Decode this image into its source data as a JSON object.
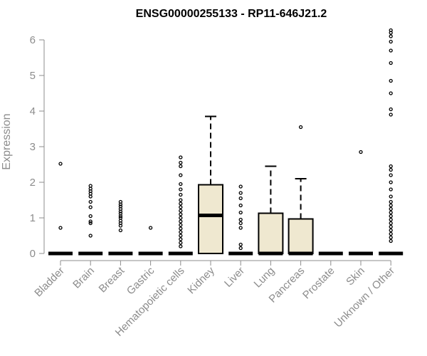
{
  "chart_data": {
    "type": "boxplot",
    "title": "ENSG00000255133 - RP11-646J21.2",
    "xlabel": "",
    "ylabel": "Expression",
    "ylim": [
      0,
      6.3
    ],
    "yticks": [
      0,
      1,
      2,
      3,
      4,
      5,
      6
    ],
    "grid": false,
    "box_fill": "#efe8d0",
    "categories": [
      "Bladder",
      "Brain",
      "Breast",
      "Gastric",
      "Hematopoietic cells",
      "Kidney",
      "Liver",
      "Lung",
      "Pancreas",
      "Prostate",
      "Skin",
      "Unknown / Other"
    ],
    "boxes": [
      {
        "q1": 0,
        "median": 0,
        "q3": 0,
        "whisker_low": 0,
        "whisker_high": 0,
        "outliers": [
          0.72,
          2.52
        ]
      },
      {
        "q1": 0,
        "median": 0,
        "q3": 0,
        "whisker_low": 0,
        "whisker_high": 0,
        "outliers": [
          0.5,
          0.85,
          0.9,
          1.05,
          1.3,
          1.45,
          1.6,
          1.68,
          1.75,
          1.82,
          1.9
        ]
      },
      {
        "q1": 0,
        "median": 0,
        "q3": 0,
        "whisker_low": 0,
        "whisker_high": 0,
        "outliers": [
          0.65,
          0.78,
          0.85,
          0.92,
          1.0,
          1.05,
          1.12,
          1.18,
          1.25,
          1.32,
          1.38,
          1.45
        ]
      },
      {
        "q1": 0,
        "median": 0,
        "q3": 0,
        "whisker_low": 0,
        "whisker_high": 0,
        "outliers": [
          0.72
        ]
      },
      {
        "q1": 0,
        "median": 0,
        "q3": 0,
        "whisker_low": 0,
        "whisker_high": 0,
        "outliers": [
          0.2,
          0.3,
          0.4,
          0.5,
          0.6,
          0.7,
          0.8,
          0.9,
          1.0,
          1.1,
          1.2,
          1.3,
          1.4,
          1.5,
          1.65,
          1.8,
          1.95,
          2.2,
          2.45,
          2.55,
          2.7
        ]
      },
      {
        "q1": 0,
        "median": 1.07,
        "q3": 1.93,
        "whisker_low": 0,
        "whisker_high": 3.85,
        "outliers": []
      },
      {
        "q1": 0,
        "median": 0,
        "q3": 0,
        "whisker_low": 0,
        "whisker_high": 0,
        "outliers": [
          0.15,
          0.25,
          0.72,
          0.85,
          0.95,
          1.15,
          1.35,
          1.55,
          1.7,
          1.88
        ]
      },
      {
        "q1": 0,
        "median": 0,
        "q3": 1.13,
        "whisker_low": 0,
        "whisker_high": 2.45,
        "outliers": []
      },
      {
        "q1": 0,
        "median": 0,
        "q3": 0.97,
        "whisker_low": 0,
        "whisker_high": 2.1,
        "outliers": [
          3.55
        ]
      },
      {
        "q1": 0,
        "median": 0,
        "q3": 0,
        "whisker_low": 0,
        "whisker_high": 0,
        "outliers": []
      },
      {
        "q1": 0,
        "median": 0,
        "q3": 0,
        "whisker_low": 0,
        "whisker_high": 0,
        "outliers": [
          2.85
        ]
      },
      {
        "q1": 0,
        "median": 0,
        "q3": 0,
        "whisker_low": 0,
        "whisker_high": 0,
        "outliers": [
          0.35,
          0.45,
          0.55,
          0.65,
          0.75,
          0.85,
          0.95,
          1.05,
          1.15,
          1.25,
          1.35,
          1.45,
          1.6,
          1.8,
          2.0,
          2.2,
          2.35,
          2.45,
          3.9,
          4.05,
          4.5,
          4.85,
          5.35,
          5.7,
          5.95,
          6.1,
          6.2,
          6.27
        ]
      }
    ]
  }
}
